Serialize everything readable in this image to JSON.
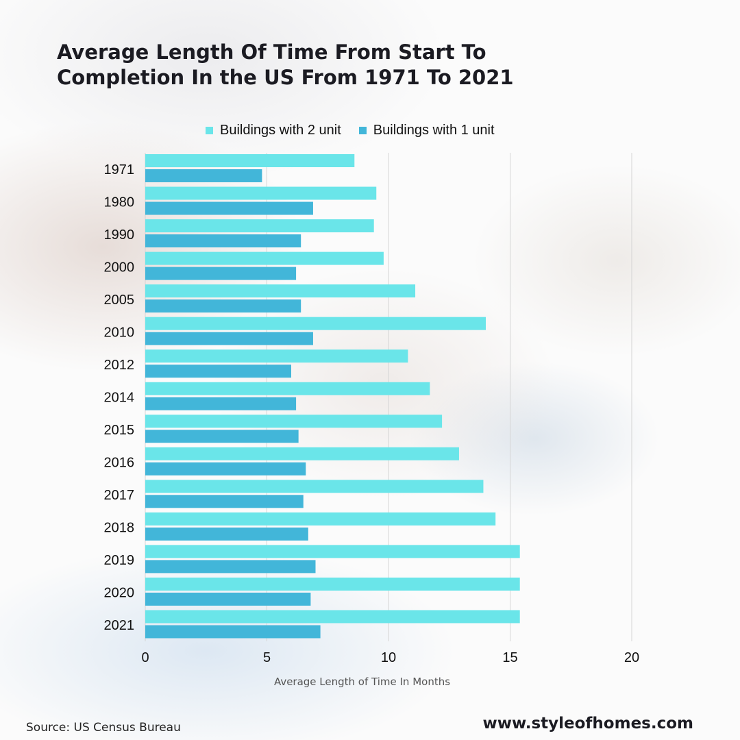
{
  "title": "Average Length Of Time From Start To Completion In the US From 1971 To 2021",
  "source": "Source: US Census Bureau",
  "website": "www.styleofhomes.com",
  "colors": {
    "two_unit": "#6ae5e9",
    "one_unit": "#42b6d9",
    "grid": "#d4d4d4"
  },
  "chart_data": {
    "type": "bar",
    "orientation": "horizontal",
    "categories": [
      "1971",
      "1980",
      "1990",
      "2000",
      "2005",
      "2010",
      "2012",
      "2014",
      "2015",
      "2016",
      "2017",
      "2018",
      "2019",
      "2020",
      "2021"
    ],
    "series": [
      {
        "name": "Buildings with 2 unit",
        "values": [
          8.6,
          9.5,
          9.4,
          9.8,
          11.1,
          14.0,
          10.8,
          11.7,
          12.2,
          12.9,
          13.9,
          14.4,
          15.4,
          15.4,
          15.4
        ]
      },
      {
        "name": "Buildings with 1 unit",
        "values": [
          4.8,
          6.9,
          6.4,
          6.2,
          6.4,
          6.9,
          6.0,
          6.2,
          6.3,
          6.6,
          6.5,
          6.7,
          7.0,
          6.8,
          7.2
        ]
      }
    ],
    "xlabel": "Average Length of Time In Months",
    "ylabel": "",
    "xlim": [
      0,
      20
    ],
    "xticks": [
      0,
      5,
      10,
      15,
      20
    ],
    "legend": "top",
    "grid": "vertical"
  }
}
